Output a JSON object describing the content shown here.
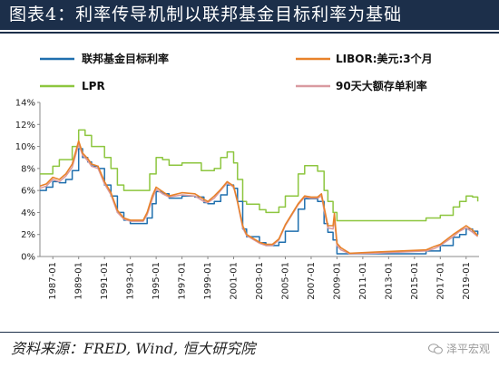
{
  "title": "图表4：利率传导机制以联邦基金目标利率为基础",
  "source_note": "资料来源：FRED, Wind, 恒大研究院",
  "watermark": "泽平宏观",
  "colors": {
    "title_bg": "#1c2f4a",
    "fed": "#1f6fae",
    "libor": "#e8822a",
    "lpr": "#8dc63f",
    "cd90": "#d99aa0"
  },
  "icons": {
    "watermark": "wechat-icon"
  },
  "chart_data": {
    "type": "line",
    "ylim": [
      0,
      14
    ],
    "xlim": [
      1986,
      2020
    ],
    "ytick_labels": [
      "0%",
      "2%",
      "4%",
      "6%",
      "8%",
      "10%",
      "12%",
      "14%"
    ],
    "yticks": [
      0,
      2,
      4,
      6,
      8,
      10,
      12,
      14
    ],
    "xtick_labels": [
      "1987-01",
      "1989-01",
      "1991-01",
      "1993-01",
      "1995-01",
      "1997-01",
      "1999-01",
      "2001-01",
      "2003-01",
      "2005-01",
      "2007-01",
      "2009-01",
      "2011-01",
      "2013-01",
      "2015-01",
      "2017-01",
      "2019-01"
    ],
    "xticks": [
      1987,
      1989,
      1991,
      1993,
      1995,
      1997,
      1999,
      2001,
      2003,
      2005,
      2007,
      2009,
      2011,
      2013,
      2015,
      2017,
      2019
    ],
    "grid": false,
    "legend": "top",
    "series": [
      {
        "name": "联邦基金目标利率",
        "x": [
          1986.0,
          1986.5,
          1987.0,
          1987.5,
          1988.0,
          1988.5,
          1989.0,
          1989.3,
          1989.7,
          1990.0,
          1990.5,
          1991.0,
          1991.5,
          1992.0,
          1992.5,
          1993.0,
          1994.0,
          1994.3,
          1994.7,
          1995.0,
          1995.5,
          1996.0,
          1997.0,
          1998.0,
          1998.7,
          1999.0,
          1999.5,
          2000.0,
          2000.5,
          2001.0,
          2001.3,
          2001.7,
          2002.0,
          2003.0,
          2003.5,
          2004.0,
          2004.5,
          2005.0,
          2006.0,
          2006.5,
          2007.0,
          2007.5,
          2008.0,
          2008.3,
          2008.7,
          2009.0,
          2010.0,
          2012.0,
          2015.9,
          2016.5,
          2017.0,
          2018.0,
          2018.5,
          2019.0,
          2019.5,
          2019.9
        ],
        "values": [
          6.0,
          6.3,
          6.8,
          6.7,
          7.0,
          7.8,
          9.8,
          9.0,
          8.6,
          8.2,
          8.0,
          6.5,
          5.5,
          4.0,
          3.3,
          3.0,
          3.0,
          3.5,
          4.8,
          5.9,
          5.7,
          5.3,
          5.5,
          5.4,
          4.9,
          4.8,
          5.0,
          5.6,
          6.5,
          6.2,
          5.0,
          2.5,
          1.8,
          1.25,
          1.0,
          1.0,
          1.3,
          2.3,
          4.3,
          5.25,
          5.25,
          5.0,
          3.0,
          2.2,
          1.5,
          0.25,
          0.25,
          0.25,
          0.5,
          0.5,
          1.0,
          1.75,
          2.0,
          2.5,
          2.3,
          2.0
        ]
      },
      {
        "name": "LIBOR:美元:3个月",
        "x": [
          1986.0,
          1986.5,
          1987.0,
          1987.5,
          1988.0,
          1988.5,
          1989.0,
          1989.3,
          1989.7,
          1990.0,
          1990.5,
          1991.0,
          1991.5,
          1992.0,
          1992.5,
          1993.0,
          1994.0,
          1994.3,
          1994.7,
          1995.0,
          1995.5,
          1996.0,
          1997.0,
          1998.0,
          1998.7,
          1999.0,
          1999.5,
          2000.0,
          2000.5,
          2001.0,
          2001.3,
          2001.7,
          2002.0,
          2003.0,
          2003.5,
          2004.0,
          2004.5,
          2005.0,
          2006.0,
          2006.5,
          2007.0,
          2007.5,
          2007.8,
          2008.0,
          2008.3,
          2008.7,
          2008.8,
          2009.0,
          2009.3,
          2010.0,
          2012.0,
          2015.9,
          2016.5,
          2017.0,
          2018.0,
          2018.5,
          2019.0,
          2019.5,
          2019.9
        ],
        "values": [
          6.4,
          6.6,
          7.2,
          7.0,
          7.5,
          8.4,
          10.5,
          9.4,
          8.9,
          8.4,
          8.2,
          6.8,
          5.8,
          4.2,
          3.5,
          3.3,
          3.3,
          4.0,
          5.5,
          6.3,
          5.9,
          5.5,
          5.8,
          5.7,
          5.2,
          5.0,
          5.5,
          6.1,
          6.8,
          6.4,
          5.0,
          2.8,
          2.0,
          1.3,
          1.1,
          1.1,
          1.6,
          2.9,
          4.8,
          5.5,
          5.4,
          5.4,
          5.7,
          4.5,
          2.8,
          2.8,
          3.9,
          1.2,
          0.8,
          0.3,
          0.4,
          0.6,
          0.9,
          1.1,
          2.0,
          2.4,
          2.8,
          2.4,
          1.9
        ]
      },
      {
        "name": "LPR",
        "x": [
          1986.0,
          1987.0,
          1987.5,
          1988.0,
          1988.5,
          1989.0,
          1989.5,
          1990.0,
          1990.5,
          1991.0,
          1991.5,
          1992.0,
          1992.5,
          1993.0,
          1994.0,
          1994.5,
          1995.0,
          1995.5,
          1996.0,
          1997.0,
          1998.0,
          1998.5,
          1999.0,
          1999.5,
          2000.0,
          2000.5,
          2001.0,
          2001.3,
          2001.7,
          2002.0,
          2003.0,
          2003.5,
          2004.0,
          2004.5,
          2005.0,
          2006.0,
          2006.5,
          2007.0,
          2007.5,
          2008.0,
          2008.3,
          2008.7,
          2009.0,
          2015.9,
          2016.5,
          2017.0,
          2018.0,
          2018.5,
          2019.0,
          2019.5,
          2019.9
        ],
        "values": [
          7.5,
          8.2,
          8.8,
          8.8,
          10.0,
          11.5,
          11.0,
          10.0,
          10.0,
          9.0,
          8.0,
          6.5,
          6.0,
          6.0,
          6.0,
          7.5,
          9.0,
          8.8,
          8.3,
          8.5,
          8.5,
          7.8,
          7.8,
          8.0,
          9.0,
          9.5,
          8.5,
          7.0,
          5.0,
          4.75,
          4.25,
          4.0,
          4.0,
          4.5,
          5.5,
          7.5,
          8.25,
          8.25,
          7.75,
          6.0,
          5.0,
          4.0,
          3.25,
          3.5,
          3.5,
          3.75,
          4.5,
          5.0,
          5.5,
          5.4,
          5.0
        ]
      },
      {
        "name": "90天大额存单利率",
        "x": [
          1986.0,
          1986.5,
          1987.0,
          1987.5,
          1988.0,
          1988.5,
          1989.0,
          1989.3,
          1989.7,
          1990.0,
          1990.5,
          1991.0,
          1991.5,
          1992.0,
          1992.5,
          1993.0,
          1994.0,
          1994.3,
          1994.7,
          1995.0,
          1995.5,
          1996.0,
          1997.0,
          1998.0,
          1998.7,
          1999.0,
          1999.5,
          2000.0,
          2000.5,
          2001.0,
          2001.3,
          2001.7,
          2002.0,
          2003.0,
          2003.5,
          2004.0,
          2004.5,
          2005.0,
          2006.0,
          2006.5,
          2007.0,
          2007.5,
          2007.8,
          2008.0,
          2008.3,
          2008.7,
          2008.8,
          2009.0,
          2009.3,
          2010.0,
          2012.0,
          2015.9,
          2016.5,
          2017.0,
          2018.0,
          2018.5,
          2019.0,
          2019.5,
          2019.9
        ],
        "values": [
          6.2,
          6.4,
          7.0,
          6.8,
          7.3,
          8.1,
          10.2,
          9.2,
          8.7,
          8.2,
          8.0,
          6.6,
          5.6,
          4.0,
          3.4,
          3.2,
          3.2,
          3.8,
          5.2,
          6.1,
          5.7,
          5.4,
          5.6,
          5.5,
          5.0,
          4.9,
          5.3,
          6.0,
          6.7,
          6.3,
          4.9,
          2.6,
          1.9,
          1.2,
          1.0,
          1.0,
          1.5,
          2.8,
          4.7,
          5.4,
          5.3,
          5.3,
          5.5,
          4.2,
          2.6,
          2.5,
          3.4,
          1.0,
          0.6,
          0.25,
          0.3,
          0.5,
          0.7,
          1.0,
          1.8,
          2.3,
          2.6,
          2.2,
          1.8
        ]
      }
    ]
  }
}
